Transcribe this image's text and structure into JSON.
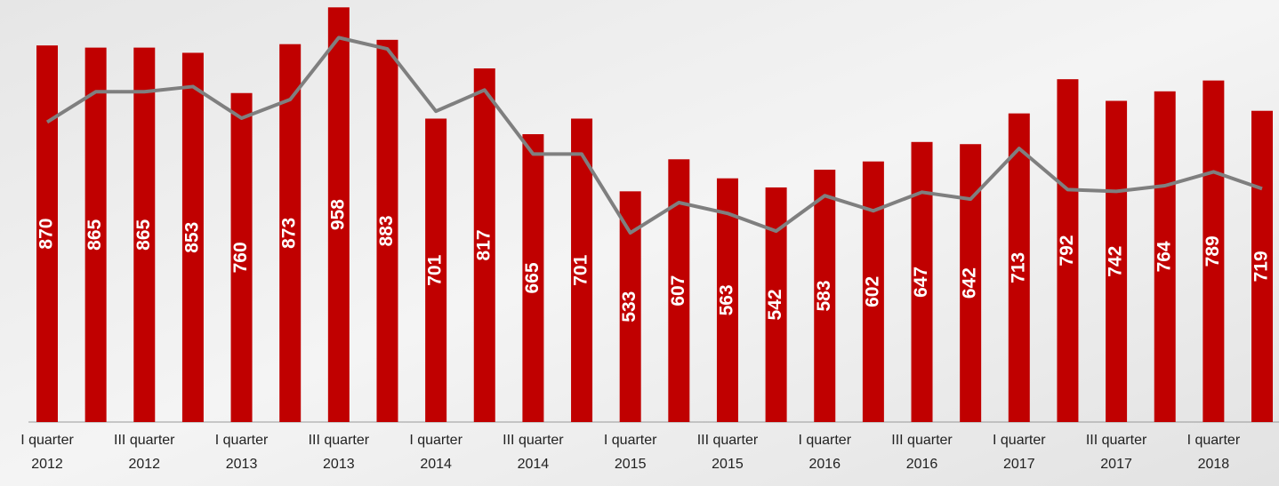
{
  "chart_data": {
    "type": "bar",
    "categories": [
      [
        "I quarter",
        "2012"
      ],
      null,
      [
        "III quarter",
        "2012"
      ],
      null,
      [
        "I quarter",
        "2013"
      ],
      null,
      [
        "III quarter",
        "2013"
      ],
      null,
      [
        "I quarter",
        "2014"
      ],
      null,
      [
        "III quarter",
        "2014"
      ],
      null,
      [
        "I quarter",
        "2015"
      ],
      null,
      [
        "III quarter",
        "2015"
      ],
      null,
      [
        "I quarter",
        "2016"
      ],
      null,
      [
        "III quarter",
        "2016"
      ],
      null,
      [
        "I quarter",
        "2017"
      ],
      null,
      [
        "III quarter",
        "2017"
      ],
      null,
      [
        "I quarter",
        "2018"
      ],
      null
    ],
    "ylim": [
      0,
      975
    ],
    "series": [
      {
        "type": "bar",
        "color": "#c00000",
        "values": [
          870,
          865,
          865,
          853,
          760,
          873,
          958,
          883,
          701,
          817,
          665,
          701,
          533,
          607,
          563,
          542,
          583,
          602,
          647,
          642,
          713,
          792,
          742,
          764,
          789,
          719
        ]
      },
      {
        "type": "line",
        "color": "#7f7f7f",
        "values": [
          693,
          763,
          763,
          775,
          702,
          745,
          888,
          862,
          718,
          767,
          619,
          619,
          437,
          507,
          482,
          441,
          523,
          488,
          531,
          515,
          632,
          537,
          533,
          546,
          578,
          539
        ]
      }
    ]
  }
}
